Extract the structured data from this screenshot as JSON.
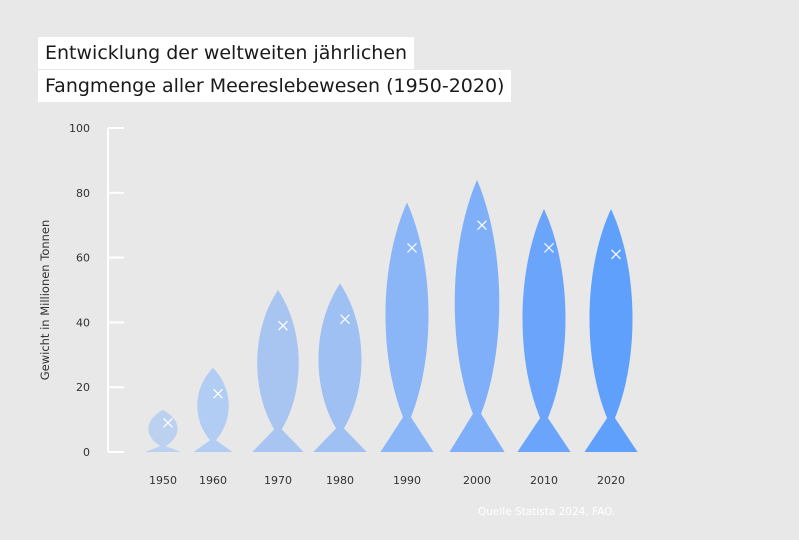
{
  "title_lines": [
    "Entwicklung der weltweiten jährlichen",
    "Fangmenge aller Meereslebewesen (1950-2020)"
  ],
  "source": "Quelle Statista 2024, FAO.",
  "colors": {
    "background": "#e8e8e8",
    "title_bg": "#ffffff",
    "axis": "#ffffff"
  },
  "chart_data": {
    "type": "bar",
    "title": "Entwicklung der weltweiten jährlichen Fangmenge aller Meereslebewesen (1950-2020)",
    "xlabel": "",
    "ylabel": "Gewicht in Millionen Tonnen",
    "ylim": [
      0,
      100
    ],
    "yticks": [
      0,
      20,
      40,
      60,
      80,
      100
    ],
    "grid": false,
    "categories": [
      "1950",
      "1960",
      "1970",
      "1980",
      "1990",
      "2000",
      "2010",
      "2020"
    ],
    "values": [
      13,
      26,
      50,
      52,
      77,
      84,
      75,
      75
    ],
    "marker_values": [
      9,
      18,
      39,
      41,
      63,
      70,
      63,
      61
    ],
    "colors": [
      "#bcd1f0",
      "#b2cdf3",
      "#a8c5f2",
      "#9fc0f3",
      "#8ab6f7",
      "#7faff8",
      "#6aa5fb",
      "#60a0fd"
    ]
  }
}
